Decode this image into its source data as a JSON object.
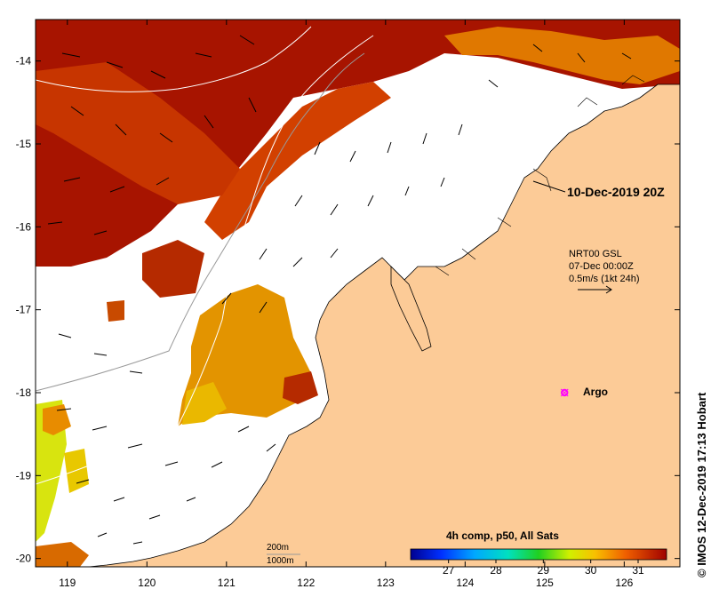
{
  "map": {
    "lon_ticks": [
      119,
      120,
      121,
      122,
      123,
      124,
      125,
      126
    ],
    "lat_ticks": [
      -14,
      -15,
      -16,
      -17,
      -18,
      -19,
      -20
    ],
    "extent": {
      "lon": [
        118.6,
        126.7
      ],
      "lat": [
        -20.1,
        -13.5
      ]
    }
  },
  "annotations": {
    "datetime": "10-Dec-2019 20Z",
    "current_source": "NRT00 GSL",
    "current_time": "07-Dec 00:00Z",
    "current_scale": "0.5m/s (1kt 24h)",
    "argo_label": "Argo",
    "isobath_200": "200m",
    "isobath_1000": "1000m"
  },
  "colorbar": {
    "title": "4h comp, p50, All Sats",
    "ticks": [
      "27",
      "28",
      "29",
      "30",
      "31"
    ]
  },
  "credit": "© IMOS 12-Dec-2019 17:13 Hobart",
  "colors": {
    "land": "#fccb97",
    "sst_hot": "#a71400",
    "sst_warm": "#e05200",
    "sst_mid": "#f0a000",
    "sst_cool": "#d7e60f",
    "argo": "#ff00ff"
  },
  "argo": {
    "lon": 125.25,
    "lat": -18.0
  }
}
